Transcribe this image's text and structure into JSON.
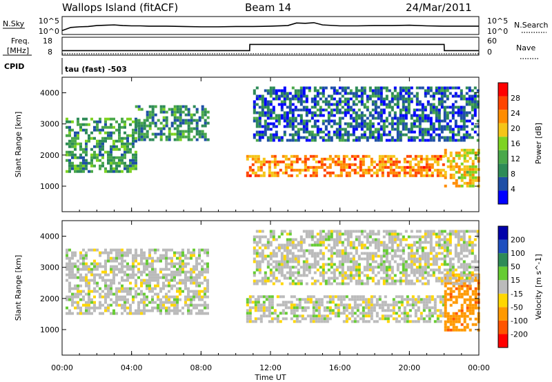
{
  "header": {
    "station": "Wallops Island (fitACF)",
    "beam": "Beam 14",
    "date": "24/Mar/2011"
  },
  "nsky_panel": {
    "left_label": "N.Sky",
    "left_ticks": [
      "10^5",
      "10^0"
    ],
    "right_ticks": [
      "10^5",
      "10^0"
    ],
    "right_label": "N.Search"
  },
  "freq_panel": {
    "left_label_1": "Freq.",
    "left_label_2": "[MHz]",
    "left_ticks": [
      "18",
      "8"
    ],
    "right_ticks": [
      "60",
      "0"
    ],
    "right_label": "Nave",
    "cpid_label": "CPID",
    "cpid_text": "tau (fast) -503"
  },
  "colors": {
    "power_scale": [
      "#0000ff",
      "#1e4fa6",
      "#2e8b57",
      "#4aa84a",
      "#7ed321",
      "#f5c518",
      "#ff8c00",
      "#ff4500",
      "#ff0000"
    ],
    "velocity_scale": [
      "#0000aa",
      "#1f4fbf",
      "#2e8b57",
      "#66cc33",
      "#bbbbbb",
      "#ffd700",
      "#ff9900",
      "#ff5500",
      "#ff0000"
    ]
  },
  "chart_data": [
    {
      "type": "line",
      "panel": "nsky",
      "x": [
        0,
        0.5,
        1,
        1.5,
        2,
        2.5,
        3,
        3.5,
        4,
        4.5,
        5,
        6,
        7,
        8,
        9,
        10,
        11,
        12,
        13,
        13.5,
        14,
        14.5,
        15,
        16,
        17,
        18,
        19,
        20,
        21,
        22,
        23,
        24
      ],
      "series": [
        {
          "values": [
            1,
            2.0,
            2.2,
            2.3,
            2.6,
            2.7,
            2.8,
            2.6,
            2.5,
            2.5,
            2.4,
            2.4,
            2.3,
            2.2,
            2.2,
            2.3,
            2.3,
            2.4,
            2.6,
            3.4,
            3.3,
            3.5,
            2.8,
            2.5,
            2.5,
            2.6,
            2.6,
            2.7,
            2.5,
            2.4,
            2.4,
            2.4
          ]
        }
      ],
      "xlim": [
        0,
        24
      ]
    },
    {
      "type": "line",
      "panel": "freq",
      "x": [
        0,
        10.8,
        10.81,
        22.0,
        22.01,
        24
      ],
      "series": [
        {
          "values": [
            10.3,
            10.3,
            14.8,
            14.8,
            10.3,
            10.3
          ]
        },
        {
          "values": [
            0,
            0,
            0,
            0,
            0,
            0
          ]
        }
      ],
      "xlim": [
        0,
        24
      ],
      "ylim": [
        8,
        18
      ]
    },
    {
      "type": "heatmap",
      "panel": "power",
      "x_range": [
        0,
        24
      ],
      "ylabel": "Slant Range [km]",
      "yticks": [
        1000,
        2000,
        3000,
        4000
      ],
      "ylim": [
        180,
        4500
      ],
      "colorbar": {
        "label": "Power [dB]",
        "ticks": [
          4,
          8,
          12,
          16,
          20,
          24,
          28
        ],
        "range": [
          0,
          30
        ]
      },
      "regions": [
        {
          "t0": 0.2,
          "t1": 4.2,
          "r0": 1500,
          "r1": 3200,
          "level": 10
        },
        {
          "t0": 4.2,
          "t1": 8.4,
          "r0": 2500,
          "r1": 3600,
          "level": 9
        },
        {
          "t0": 10.6,
          "t1": 22.0,
          "r0": 1300,
          "r1": 2000,
          "level": 22
        },
        {
          "t0": 22.0,
          "t1": 24.0,
          "r0": 1000,
          "r1": 2200,
          "level": 18
        },
        {
          "t0": 11.0,
          "t1": 24.0,
          "r0": 2500,
          "r1": 4200,
          "level": 6
        }
      ]
    },
    {
      "type": "heatmap",
      "panel": "velocity",
      "x_range": [
        0,
        24
      ],
      "xlabel": "Time UT",
      "xticks": [
        "00:00",
        "04:00",
        "08:00",
        "12:00",
        "16:00",
        "20:00",
        "00:00"
      ],
      "ylabel": "Slant Range [km]",
      "yticks": [
        1000,
        2000,
        3000,
        4000
      ],
      "ylim": [
        180,
        4500
      ],
      "colorbar": {
        "label": "Velocity [m s^-1]",
        "ticks": [
          200,
          100,
          50,
          15,
          -15,
          -50,
          -100,
          -200
        ]
      },
      "regions": [
        {
          "t0": 0.2,
          "t1": 8.4,
          "r0": 1500,
          "r1": 3600,
          "velocity": 0
        },
        {
          "t0": 10.6,
          "t1": 22.0,
          "r0": 1300,
          "r1": 2100,
          "velocity": 0
        },
        {
          "t0": 22.0,
          "t1": 24.0,
          "r0": 1000,
          "r1": 2800,
          "velocity": -60
        },
        {
          "t0": 11.0,
          "t1": 24.0,
          "r0": 2500,
          "r1": 4200,
          "velocity": 0
        }
      ]
    }
  ]
}
